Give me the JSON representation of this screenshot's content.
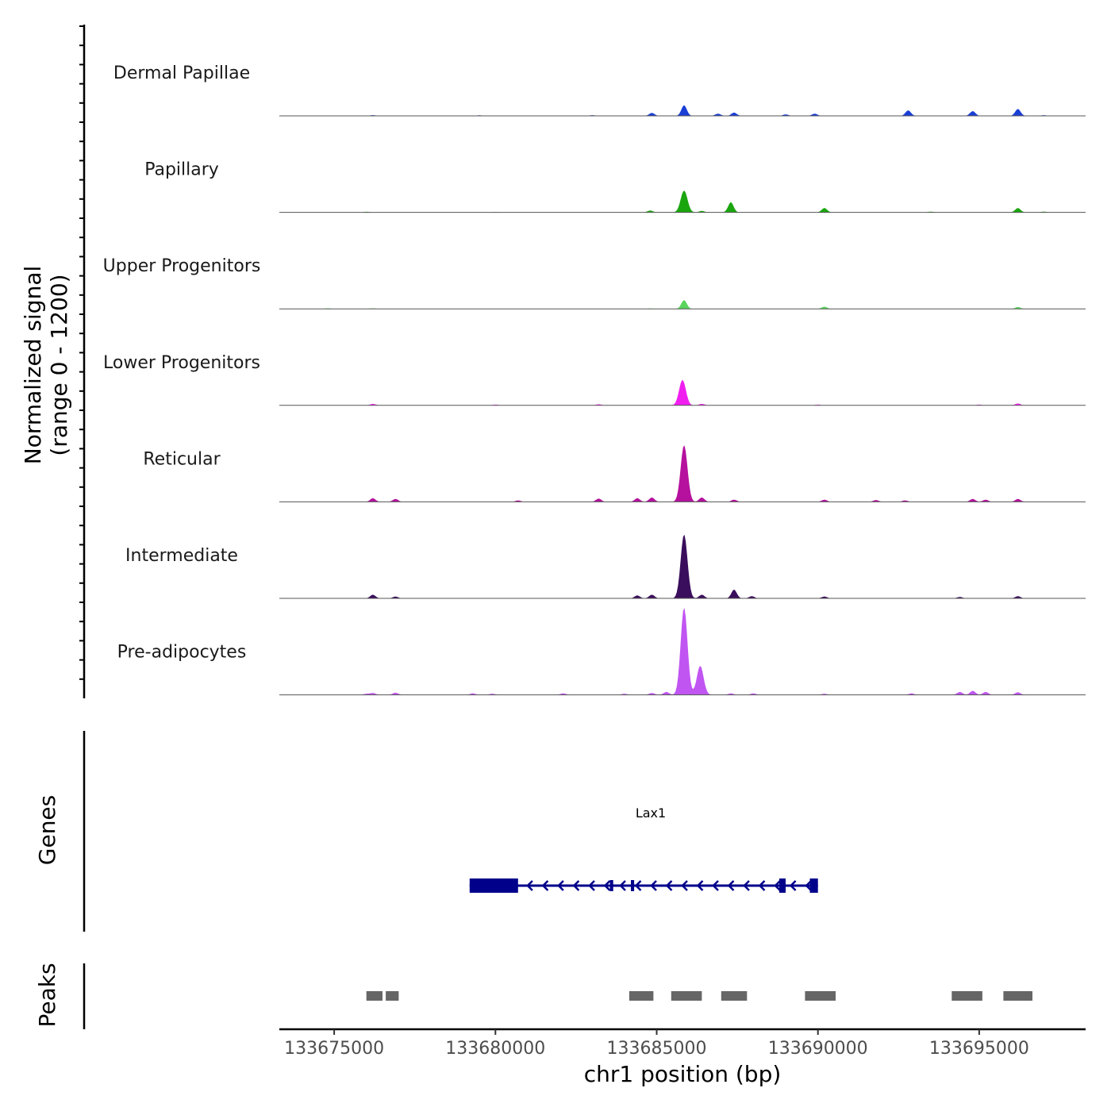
{
  "chart_data": {
    "type": "area",
    "title": "",
    "ylabel_line1": "Normalized signal",
    "ylabel_line2": "(range 0 - 1200)",
    "y_range": [
      0,
      1200
    ],
    "xlabel": "chr1 position (bp)",
    "x_range": [
      133673300,
      133698300
    ],
    "x_ticks": [
      133675000,
      133680000,
      133685000,
      133690000,
      133695000
    ],
    "x_tick_labels": [
      "133675000",
      "133680000",
      "133685000",
      "133690000",
      "133695000"
    ],
    "genes_label": "Genes",
    "peaks_label": "Peaks",
    "series": [
      {
        "name": "Dermal Papillae",
        "color": "#1a3fd6",
        "peaks": [
          [
            133676200,
            10
          ],
          [
            133679500,
            8
          ],
          [
            133683000,
            10
          ],
          [
            133684850,
            40
          ],
          [
            133685850,
            145
          ],
          [
            133686900,
            30
          ],
          [
            133687400,
            45
          ],
          [
            133689000,
            20
          ],
          [
            133689900,
            30
          ],
          [
            133692800,
            75
          ],
          [
            133694800,
            65
          ],
          [
            133696200,
            95
          ],
          [
            133697000,
            10
          ]
        ]
      },
      {
        "name": "Papillary",
        "color": "#1ba60f",
        "peaks": [
          [
            133676000,
            8
          ],
          [
            133680000,
            5
          ],
          [
            133684800,
            25
          ],
          [
            133685850,
            300
          ],
          [
            133686400,
            20
          ],
          [
            133687300,
            140
          ],
          [
            133690200,
            60
          ],
          [
            133693500,
            10
          ],
          [
            133696200,
            60
          ],
          [
            133697000,
            10
          ]
        ]
      },
      {
        "name": "Upper Progenitors",
        "color": "#5ad45c",
        "peaks": [
          [
            133674800,
            8
          ],
          [
            133676200,
            8
          ],
          [
            133684800,
            5
          ],
          [
            133685850,
            120
          ],
          [
            133690200,
            30
          ],
          [
            133696200,
            25
          ]
        ]
      },
      {
        "name": "Lower Progenitors",
        "color": "#f01ff0",
        "peaks": [
          [
            133676200,
            20
          ],
          [
            133680000,
            10
          ],
          [
            133683200,
            15
          ],
          [
            133685800,
            350
          ],
          [
            133686400,
            20
          ],
          [
            133690000,
            10
          ],
          [
            133695000,
            10
          ],
          [
            133696200,
            25
          ]
        ]
      },
      {
        "name": "Reticular",
        "color": "#b5119e",
        "peaks": [
          [
            133676200,
            50
          ],
          [
            133676900,
            40
          ],
          [
            133680700,
            20
          ],
          [
            133683200,
            45
          ],
          [
            133684400,
            50
          ],
          [
            133684850,
            60
          ],
          [
            133685850,
            780
          ],
          [
            133686400,
            60
          ],
          [
            133687400,
            30
          ],
          [
            133690200,
            30
          ],
          [
            133691800,
            25
          ],
          [
            133692700,
            20
          ],
          [
            133694800,
            40
          ],
          [
            133695200,
            30
          ],
          [
            133696200,
            40
          ]
        ]
      },
      {
        "name": "Intermediate",
        "color": "#3a0e5c",
        "peaks": [
          [
            133676200,
            50
          ],
          [
            133676900,
            25
          ],
          [
            133684400,
            40
          ],
          [
            133684850,
            50
          ],
          [
            133685850,
            880
          ],
          [
            133686400,
            50
          ],
          [
            133687400,
            120
          ],
          [
            133687950,
            30
          ],
          [
            133690200,
            25
          ],
          [
            133694400,
            20
          ],
          [
            133696200,
            30
          ]
        ]
      },
      {
        "name": "Pre-adipocytes",
        "color": "#c155f2",
        "peaks": [
          [
            133676000,
            15
          ],
          [
            133676200,
            25
          ],
          [
            133676900,
            30
          ],
          [
            133679300,
            20
          ],
          [
            133679900,
            15
          ],
          [
            133682100,
            20
          ],
          [
            133684000,
            15
          ],
          [
            133684850,
            25
          ],
          [
            133685300,
            40
          ],
          [
            133685850,
            1200
          ],
          [
            133686350,
            400
          ],
          [
            133687300,
            20
          ],
          [
            133688000,
            20
          ],
          [
            133690200,
            15
          ],
          [
            133692900,
            20
          ],
          [
            133694400,
            40
          ],
          [
            133694800,
            55
          ],
          [
            133695200,
            40
          ],
          [
            133696200,
            35
          ]
        ]
      }
    ],
    "gene": {
      "name": "Lax1",
      "color": "#00008b",
      "strand": "-",
      "start": 133679200,
      "end": 133690000,
      "exons": [
        [
          133679200,
          133680700
        ],
        [
          133683550,
          133683650
        ],
        [
          133684200,
          133684300
        ],
        [
          133688800,
          133689000
        ],
        [
          133689750,
          133690000
        ]
      ]
    },
    "peak_regions": [
      [
        133676000,
        133676500
      ],
      [
        133676600,
        133677000
      ],
      [
        133684150,
        133684900
      ],
      [
        133685450,
        133686400
      ],
      [
        133687000,
        133687800
      ],
      [
        133689600,
        133690550
      ],
      [
        133694150,
        133695100
      ],
      [
        133695750,
        133696650
      ]
    ]
  }
}
